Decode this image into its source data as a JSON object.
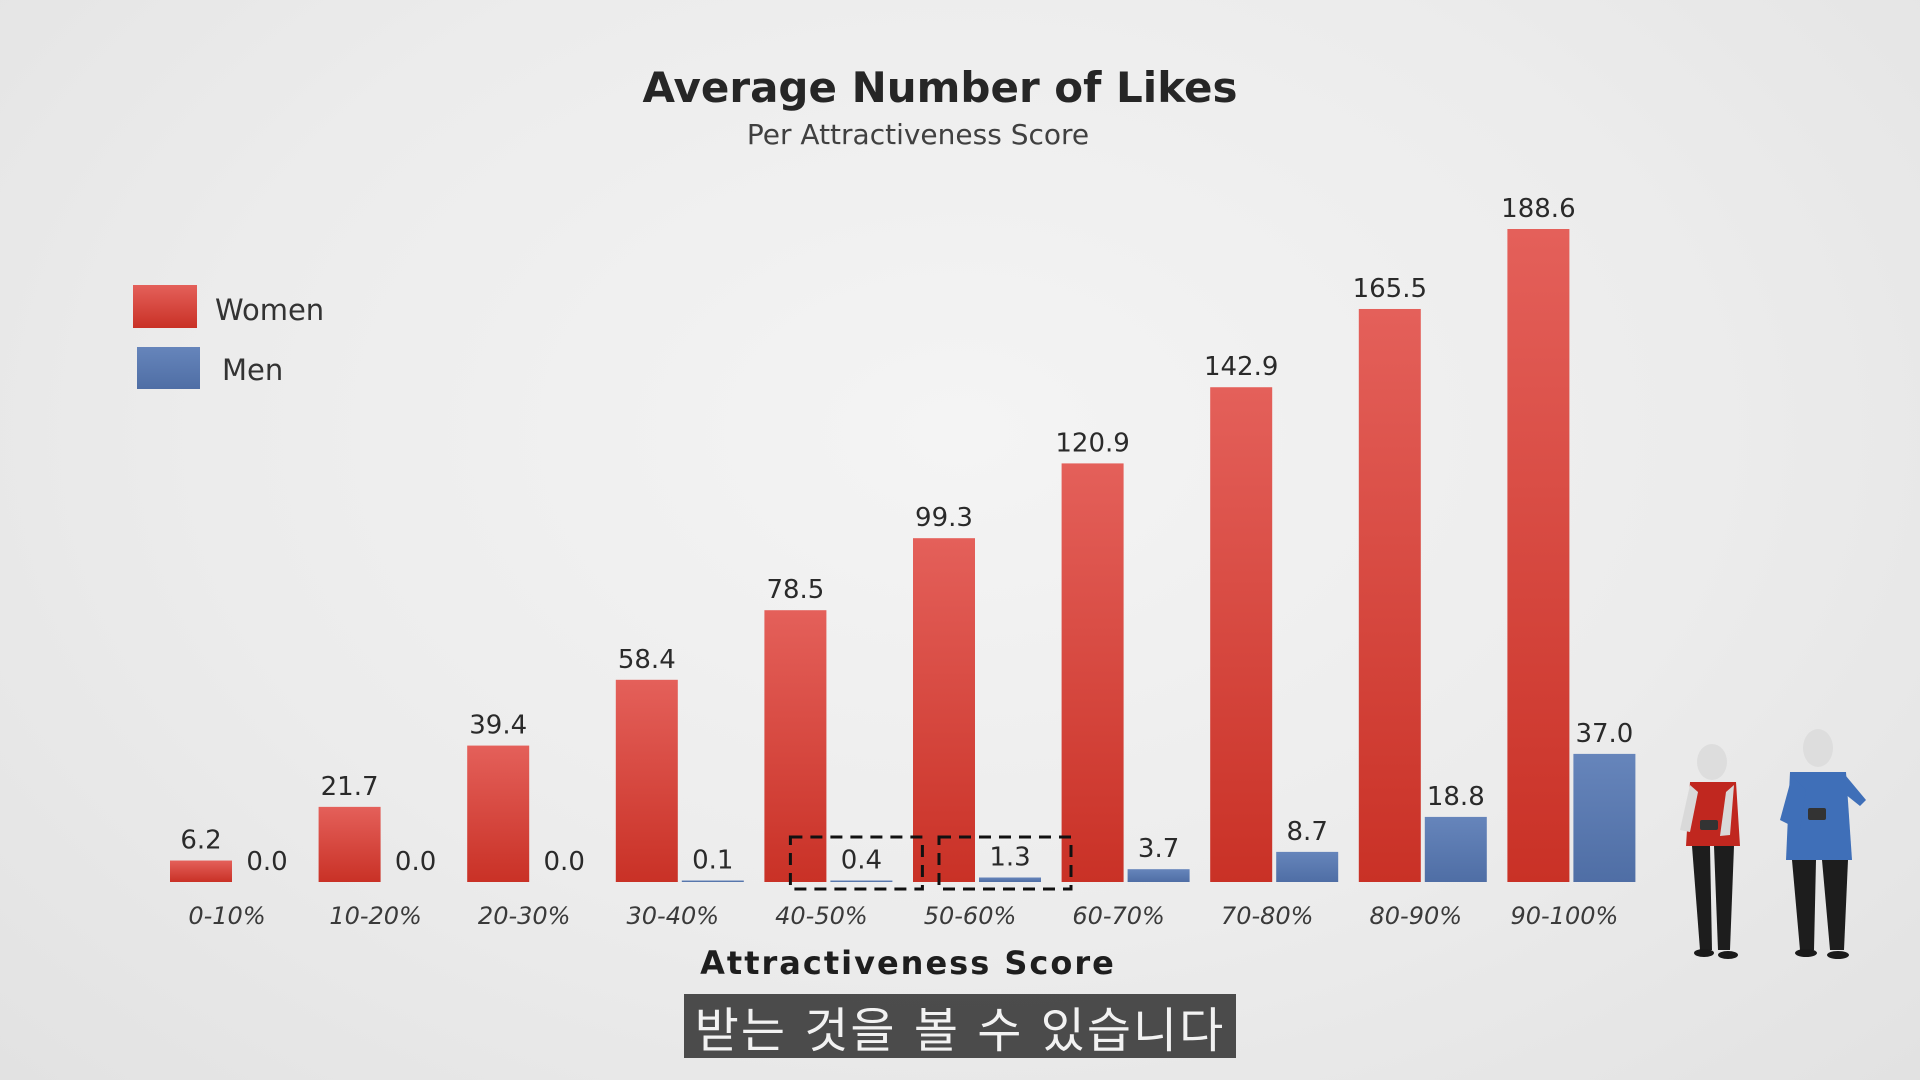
{
  "caption": "받는 것을 볼 수 있습니다",
  "chart_data": {
    "type": "bar",
    "title": "Average Number of Likes",
    "subtitle": "Per Attractiveness Score",
    "xlabel": "Attractiveness Score",
    "ylabel": "",
    "categories": [
      "0-10%",
      "10-20%",
      "20-30%",
      "30-40%",
      "40-50%",
      "50-60%",
      "60-70%",
      "70-80%",
      "80-90%",
      "90-100%"
    ],
    "series": [
      {
        "name": "Women",
        "color": "#d4342c",
        "values": [
          6.2,
          21.7,
          39.4,
          58.4,
          78.5,
          99.3,
          120.9,
          142.9,
          165.5,
          188.6
        ]
      },
      {
        "name": "Men",
        "color": "#5a7bb0",
        "values": [
          0.0,
          0.0,
          0.0,
          0.1,
          0.4,
          1.3,
          3.7,
          8.7,
          18.8,
          37.0
        ]
      }
    ],
    "value_labels": {
      "Women": [
        "6.2",
        "21.7",
        "39.4",
        "58.4",
        "78.5",
        "99.3",
        "120.9",
        "142.9",
        "165.5",
        "188.6"
      ],
      "Men": [
        "0.0",
        "0.0",
        "0.0",
        "0.1",
        "0.4",
        "1.3",
        "3.7",
        "8.7",
        "18.8",
        "37.0"
      ]
    },
    "highlighted": [
      {
        "category": "40-50%",
        "series": "Men"
      },
      {
        "category": "50-60%",
        "series": "Men"
      }
    ],
    "ylim": [
      0,
      190
    ],
    "grid": false,
    "legend_position": "top-left"
  }
}
